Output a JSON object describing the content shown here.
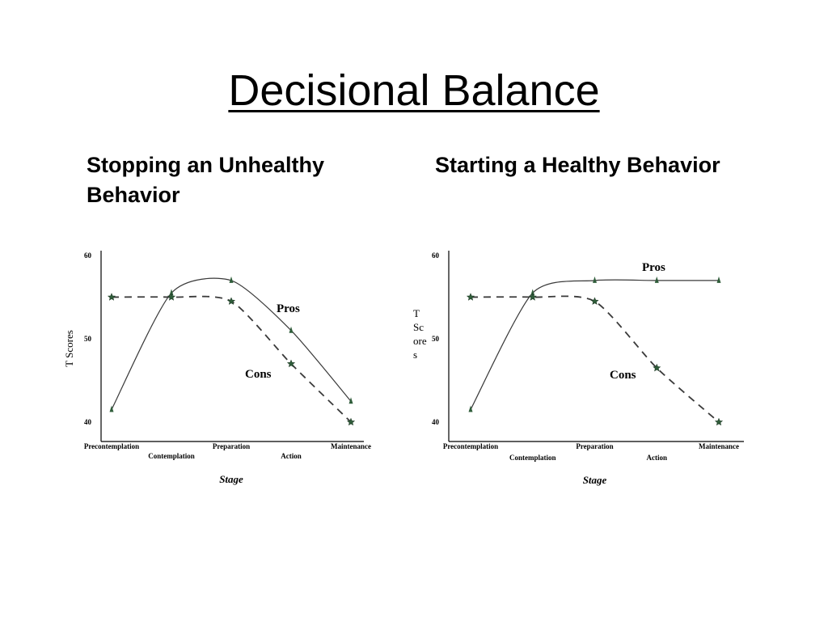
{
  "slide": {
    "title": "Decisional Balance"
  },
  "chart_data": [
    {
      "type": "line",
      "heading": "Stopping an Unhealthy Behavior",
      "xlabel": "Stage",
      "ylabel": "T Scores",
      "yticks": [
        "40",
        "50",
        "60"
      ],
      "ylim": [
        40,
        60
      ],
      "categories": [
        "Precontemplation",
        "Contemplation",
        "Preparation",
        "Action",
        "Maintenance"
      ],
      "series": [
        {
          "name": "Pros",
          "style": "solid",
          "marker": "triangle",
          "color": "#2f5d3a",
          "values": [
            41.5,
            55.5,
            57,
            51,
            42.5
          ]
        },
        {
          "name": "Cons",
          "style": "dashed",
          "marker": "star",
          "color": "#2f5d3a",
          "values": [
            55,
            55,
            54.5,
            47,
            40
          ]
        }
      ]
    },
    {
      "type": "line",
      "heading": "Starting a Healthy Behavior",
      "xlabel": "Stage",
      "ylabel": "T Scores",
      "ylabel_lines": [
        "T",
        "Sc",
        "ore",
        "s"
      ],
      "yticks": [
        "40",
        "50",
        "60"
      ],
      "ylim": [
        40,
        60
      ],
      "categories": [
        "Precontemplation",
        "Contemplation",
        "Preparation",
        "Action",
        "Maintenance"
      ],
      "series": [
        {
          "name": "Pros",
          "style": "solid",
          "marker": "triangle",
          "color": "#2f5d3a",
          "values": [
            41.5,
            55.5,
            57,
            57,
            57
          ]
        },
        {
          "name": "Cons",
          "style": "dashed",
          "marker": "star",
          "color": "#2f5d3a",
          "values": [
            55,
            55,
            54.5,
            46.5,
            40
          ]
        }
      ]
    }
  ]
}
